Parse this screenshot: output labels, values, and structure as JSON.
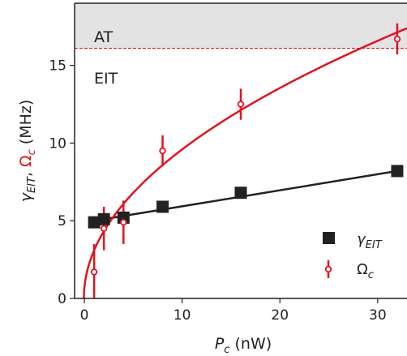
{
  "chart_data": {
    "type": "scatter",
    "xlim": [
      -1,
      33
    ],
    "ylim": [
      0,
      19
    ],
    "x_ticks": [
      0,
      10,
      20,
      30
    ],
    "y_ticks": [
      0,
      5,
      10,
      15
    ],
    "grid": false,
    "legend_position": "bottom-right",
    "threshold": 16.1,
    "regions": [
      {
        "label": "AT",
        "from": 16.1,
        "to": 19,
        "color": "#e3e3e3"
      },
      {
        "label": "EIT"
      }
    ],
    "xlabel": {
      "italic": "P",
      "sub": "c",
      "rest": " (nW)"
    },
    "ylabel": {
      "gamma": {
        "symbol": "γ",
        "sub": "EIT",
        "color": "#222222"
      },
      "sep": ",  ",
      "omega": {
        "symbol": "Ω",
        "sub": "c",
        "color": "#e0141e"
      },
      "unit": " (MHz)"
    },
    "series": [
      {
        "name": "γ",
        "name_sub": "EIT",
        "marker": "square",
        "color": "#222222",
        "x": [
          1,
          2,
          4,
          8,
          16,
          32
        ],
        "y": [
          4.9,
          5.1,
          5.2,
          5.9,
          6.8,
          8.2
        ],
        "fit": {
          "type": "line",
          "x": [
            1,
            32
          ],
          "y": [
            5.0,
            8.2
          ]
        }
      },
      {
        "name": "Ω",
        "name_sub": "c",
        "marker": "circle",
        "color": "#e0141e",
        "x": [
          1,
          2,
          4,
          8,
          16,
          32
        ],
        "y": [
          1.7,
          4.5,
          4.9,
          9.5,
          12.5,
          16.7
        ],
        "yerr": [
          1.8,
          1.4,
          1.4,
          1.0,
          1.0,
          1.0
        ],
        "fit": {
          "type": "sqrt",
          "A": 3.025,
          "x0": -0.05
        }
      }
    ]
  }
}
